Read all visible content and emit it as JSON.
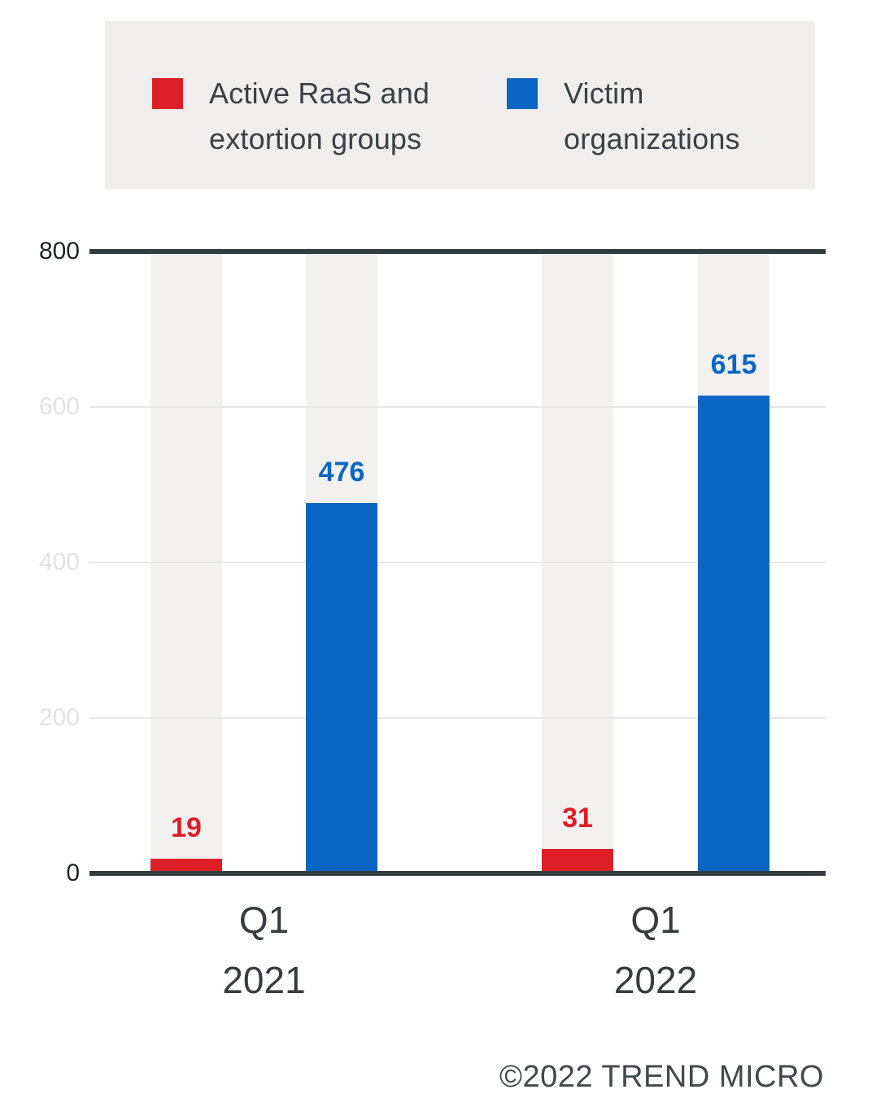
{
  "legend": {
    "background": "#efeeec",
    "items": [
      {
        "label": "Active RaaS and extortion groups",
        "color": "#dc1f26"
      },
      {
        "label": "Victim organizations",
        "color": "#0b66c3"
      }
    ]
  },
  "chart_data": {
    "type": "bar",
    "categories": [
      "Q1 2021",
      "Q1 2022"
    ],
    "series": [
      {
        "name": "Active RaaS and extortion groups",
        "color": "#dc1f26",
        "values": [
          19,
          31
        ]
      },
      {
        "name": "Victim organizations",
        "color": "#0b66c3",
        "values": [
          476,
          615
        ]
      }
    ],
    "ylim": [
      0,
      800
    ],
    "yticks": [
      0,
      200,
      400,
      600,
      800
    ],
    "grid": true,
    "legend_position": "top",
    "axis_color": "#343c3f",
    "column_background": "#f2f1ef"
  },
  "footer": {
    "copyright": "©2022 TREND MICRO"
  }
}
